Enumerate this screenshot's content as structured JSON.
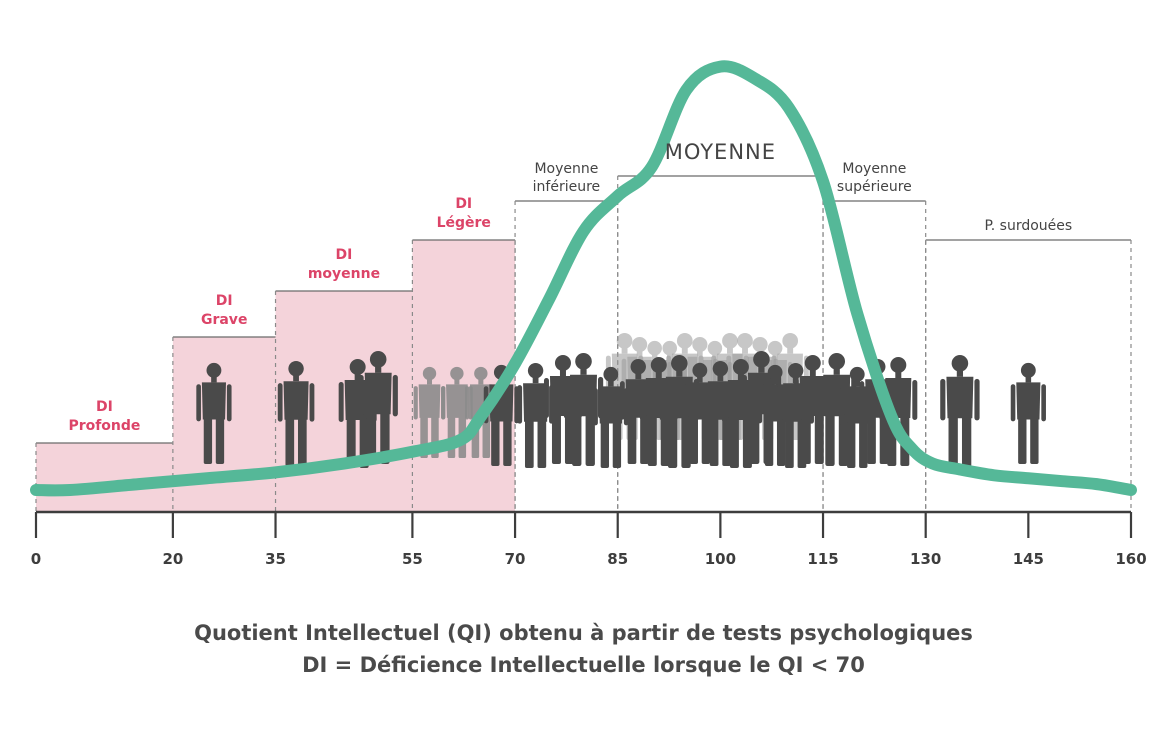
{
  "chart_data": {
    "type": "area",
    "x_ticks": [
      0,
      20,
      35,
      55,
      70,
      85,
      100,
      115,
      130,
      145,
      160
    ],
    "xlim": [
      0,
      160
    ],
    "deficiency_bands": [
      {
        "lines": [
          "DI",
          "Profonde"
        ],
        "from": 0,
        "to": 20,
        "level": 1
      },
      {
        "lines": [
          "DI",
          "Grave"
        ],
        "from": 20,
        "to": 35,
        "level": 2
      },
      {
        "lines": [
          "DI",
          "moyenne"
        ],
        "from": 35,
        "to": 55,
        "level": 3
      },
      {
        "lines": [
          "DI",
          "Légère"
        ],
        "from": 55,
        "to": 70,
        "level": 4
      }
    ],
    "categories": [
      {
        "lines": [
          "Moyenne",
          "inférieure"
        ],
        "from": 70,
        "to": 85
      },
      {
        "lines": [
          "MOYENNE"
        ],
        "from": 85,
        "to": 115
      },
      {
        "lines": [
          "Moyenne",
          "supérieure"
        ],
        "from": 115,
        "to": 130
      },
      {
        "lines": [
          "P. surdouées"
        ],
        "from": 130,
        "to": 160
      }
    ],
    "curve": {
      "x": [
        0,
        5,
        15,
        25,
        35,
        45,
        55,
        62,
        65,
        70,
        75,
        80,
        85,
        90,
        95,
        100,
        105,
        110,
        115,
        120,
        125,
        128,
        131,
        135,
        140,
        145,
        150,
        155,
        160
      ],
      "y": [
        0.0,
        0.0,
        0.02,
        0.04,
        0.06,
        0.09,
        0.13,
        0.17,
        0.25,
        0.43,
        0.65,
        0.88,
        1.0,
        1.1,
        1.36,
        1.44,
        1.4,
        1.3,
        1.05,
        0.6,
        0.25,
        0.14,
        0.09,
        0.07,
        0.05,
        0.04,
        0.03,
        0.02,
        0.0
      ]
    },
    "colors": {
      "curve": "#55b898",
      "band_fill": "#f4d3da",
      "di_text": "#dc4468",
      "axis": "#3d3d3d",
      "silhouette": "#4a4a4a",
      "silhouette_back": "#9a9a9a"
    }
  },
  "captions": {
    "line1": "Quotient Intellectuel (QI) obtenu à partir de tests psychologiques",
    "line2": "DI = Déficience Intellectuelle lorsque le QI < 70"
  }
}
